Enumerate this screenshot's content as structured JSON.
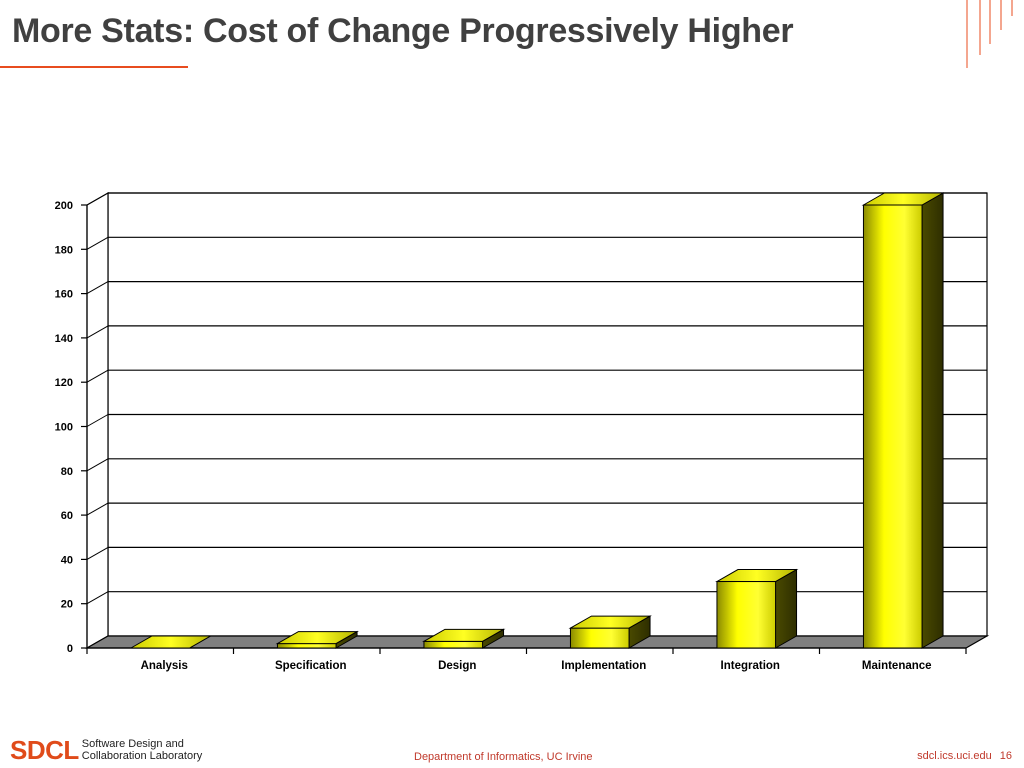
{
  "slide": {
    "title": "More Stats: Cost of Change Progressively Higher",
    "colors": {
      "accent": "#e84c1f",
      "bar_fill": "#ffff00",
      "bar_side": "#5a5a00"
    }
  },
  "chart_data": {
    "type": "bar",
    "style": "3d",
    "categories": [
      "Analysis",
      "Specification",
      "Design",
      "Implementation",
      "Integration",
      "Maintenance"
    ],
    "values": [
      0,
      2,
      3,
      9,
      30,
      200
    ],
    "yticks": [
      "0",
      "20",
      "40",
      "60",
      "80",
      "100",
      "120",
      "140",
      "160",
      "180",
      "200"
    ],
    "ylim": [
      0,
      200
    ],
    "grid": true,
    "title": "",
    "xlabel": "",
    "ylabel": ""
  },
  "footer": {
    "logo_mark": "SDCL",
    "logo_line1": "Software Design and",
    "logo_line2": "Collaboration Laboratory",
    "department": "Department of Informatics, UC Irvine",
    "url": "sdcl.ics.uci.edu",
    "page_number": "16"
  }
}
